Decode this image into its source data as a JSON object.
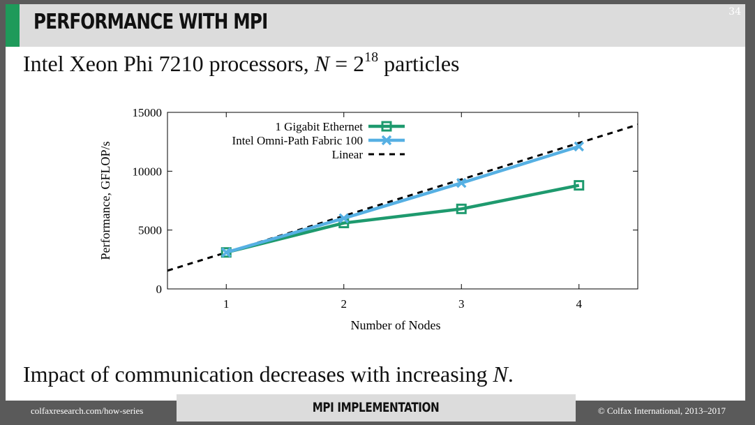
{
  "slide": {
    "title": "PERFORMANCE WITH MPI",
    "number": "34",
    "subtitle_prefix": "Intel Xeon Phi 7210 processors,",
    "subtitle_var": "N",
    "subtitle_eq": " = 2",
    "subtitle_exp": "18",
    "subtitle_suffix": " particles",
    "conclusion_prefix": "Impact of communication decreases with increasing",
    "conclusion_var": "N",
    "conclusion_suffix": "."
  },
  "footer": {
    "left": "colfaxresearch.com/how-series",
    "center": "MPI IMPLEMENTATION",
    "right": "© Colfax International, 2013–2017"
  },
  "colors": {
    "ethernet": "#1e9a6e",
    "omnipath": "#56b0e3",
    "linear": "#000000",
    "accent": "#1e9a5a"
  },
  "chart_data": {
    "type": "line",
    "title": "",
    "xlabel": "Number of Nodes",
    "ylabel": "Performance, GFLOP/s",
    "xlim": [
      0.5,
      4.5
    ],
    "ylim": [
      0,
      15000
    ],
    "xticks": [
      1,
      2,
      3,
      4
    ],
    "yticks": [
      0,
      5000,
      10000,
      15000
    ],
    "grid": false,
    "legend_position": "top-left",
    "series": [
      {
        "name": "1 Gigabit Ethernet",
        "style": "line-square",
        "x": [
          1,
          2,
          3,
          4
        ],
        "y": [
          3100,
          5600,
          6800,
          8800
        ]
      },
      {
        "name": "Intel Omni-Path Fabric 100",
        "style": "line-cross",
        "x": [
          1,
          2,
          3,
          4
        ],
        "y": [
          3100,
          6000,
          9000,
          12100
        ]
      },
      {
        "name": "Linear",
        "style": "dashed",
        "x": [
          0.5,
          4.5
        ],
        "y": [
          1550,
          13950
        ]
      }
    ]
  }
}
